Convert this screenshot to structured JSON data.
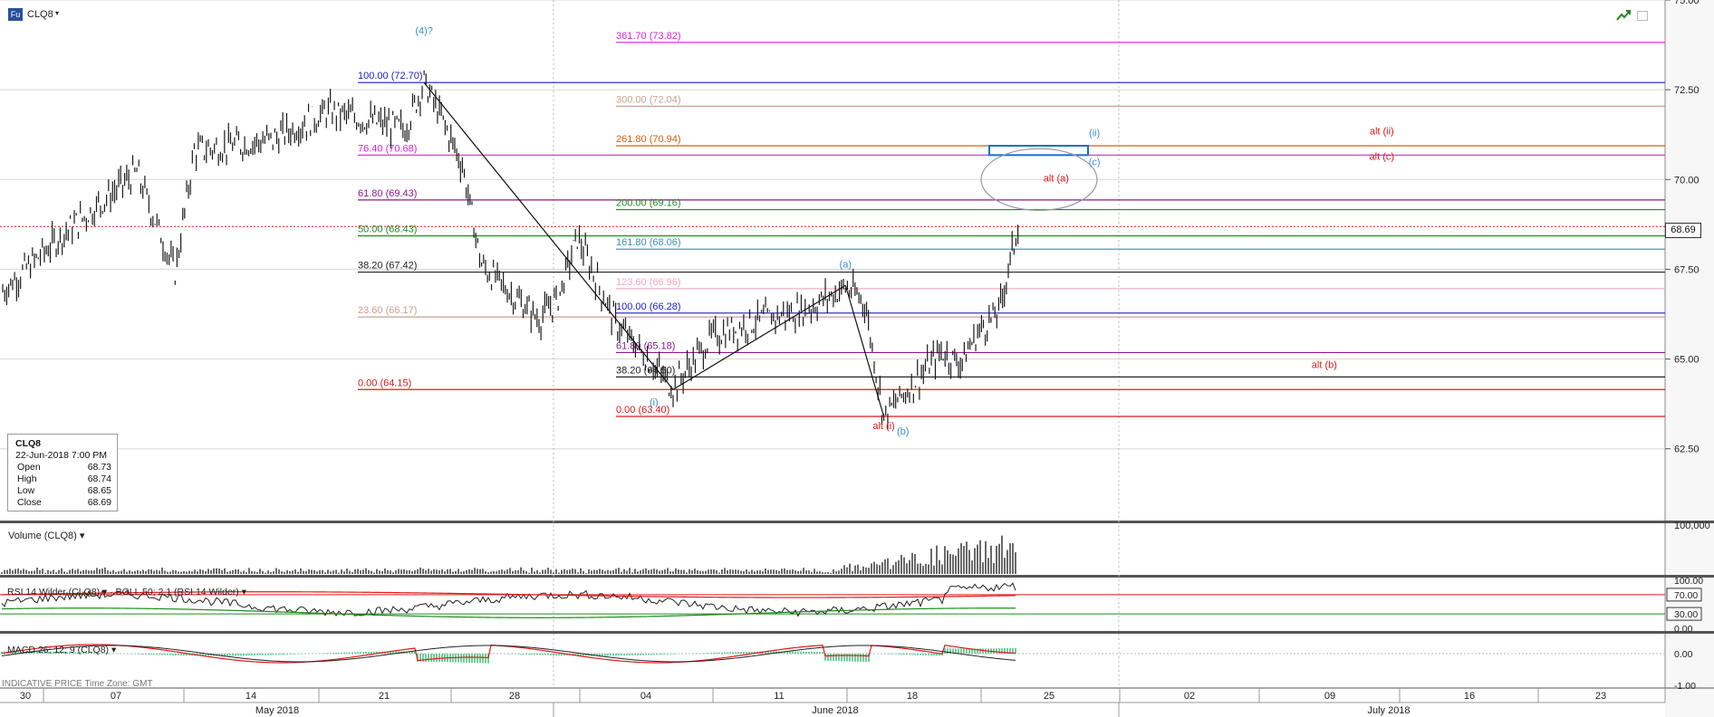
{
  "header": {
    "source_badge": "Fu",
    "symbol": "CLQ8",
    "caret": "▾"
  },
  "info_box": {
    "symbol": "CLQ8",
    "datetime": "22-Jun-2018 7:00 PM",
    "rows": [
      {
        "label": "Open",
        "value": "68.73"
      },
      {
        "label": "High",
        "value": "68.74"
      },
      {
        "label": "Low",
        "value": "68.65"
      },
      {
        "label": "Close",
        "value": "68.69"
      }
    ]
  },
  "icons": {
    "trend": "trend-line-icon",
    "window": "window-restore-icon"
  },
  "panels": {
    "volume_label": "Volume (CLQ8) ▾",
    "rsi_label": "RSI 14 Wilder (CLQ8) ▾ · BOLL 50; 2.1 (RSI 14 Wilder) ▾",
    "macd_label": "MACD 26; 12; 9 (CLQ8) ▾",
    "footnote": "INDICATIVE PRICE   Time Zone: GMT"
  },
  "colors": {
    "price": "#1a1a1a",
    "fib_blue": "#1c1cc8",
    "fib_magenta": "#e020d8",
    "fib_purple": "#8a1a8a",
    "fib_green": "#1f8a1f",
    "fib_teal": "#3a8faa",
    "fib_pink": "#f4a6c0",
    "fib_tan": "#c9a090",
    "fib_red": "#e01818",
    "fib_orange": "#d06010",
    "fib_black": "#222222",
    "wave_blue": "#3a8fd0",
    "wave_red": "#e01818"
  },
  "chart_data": {
    "type": "candlestick",
    "symbol": "CLQ8",
    "ylim": [
      60.5,
      75.0
    ],
    "y_ticks": [
      "75.00",
      "72.50",
      "70.00",
      "67.50",
      "65.00",
      "62.50"
    ],
    "last_price": "68.69",
    "x_axis": {
      "day_labels": [
        "30",
        "07",
        "14",
        "21",
        "28",
        "04",
        "11",
        "18",
        "25",
        "02",
        "09",
        "16",
        "23"
      ],
      "month_labels": [
        "May 2018",
        "June 2018",
        "July 2018"
      ]
    },
    "price_path": [
      {
        "date": "2018-04-30",
        "close": 66.9
      },
      {
        "date": "2018-05-03",
        "close": 68.4
      },
      {
        "date": "2018-05-07",
        "close": 70.2
      },
      {
        "date": "2018-05-09",
        "close": 67.4
      },
      {
        "date": "2018-05-10",
        "close": 70.8
      },
      {
        "date": "2018-05-14",
        "close": 71.1
      },
      {
        "date": "2018-05-17",
        "close": 71.9
      },
      {
        "date": "2018-05-21",
        "close": 71.4
      },
      {
        "date": "2018-05-22",
        "close": 72.7
      },
      {
        "date": "2018-05-23",
        "close": 71.6
      },
      {
        "date": "2018-05-24",
        "close": 70.4
      },
      {
        "date": "2018-05-25",
        "close": 67.6
      },
      {
        "date": "2018-05-28",
        "close": 66.1
      },
      {
        "date": "2018-05-29",
        "close": 66.7
      },
      {
        "date": "2018-05-30",
        "close": 68.4
      },
      {
        "date": "2018-06-01",
        "close": 66.0
      },
      {
        "date": "2018-06-04",
        "close": 64.2
      },
      {
        "date": "2018-06-06",
        "close": 65.6
      },
      {
        "date": "2018-06-08",
        "close": 66.0
      },
      {
        "date": "2018-06-11",
        "close": 66.4
      },
      {
        "date": "2018-06-13",
        "close": 67.0
      },
      {
        "date": "2018-06-14",
        "close": 66.6
      },
      {
        "date": "2018-06-15",
        "close": 63.4
      },
      {
        "date": "2018-06-18",
        "close": 65.2
      },
      {
        "date": "2018-06-19",
        "close": 64.9
      },
      {
        "date": "2018-06-20",
        "close": 65.8
      },
      {
        "date": "2018-06-21",
        "close": 66.3
      },
      {
        "date": "2018-06-22",
        "close": 68.69
      }
    ],
    "fib_levels": [
      {
        "label": "361.70 (73.82)",
        "price": 73.82,
        "color": "#e020d8",
        "anchor": "right"
      },
      {
        "label": "100.00 (72.70)",
        "price": 72.7,
        "color": "#1c1cc8",
        "anchor": "left"
      },
      {
        "label": "300.00 (72.04)",
        "price": 72.04,
        "color": "#c9a090",
        "anchor": "right"
      },
      {
        "label": "261.80 (70.94)",
        "price": 70.94,
        "color": "#d06010",
        "anchor": "right"
      },
      {
        "label": "76.40 (70.68)",
        "price": 70.68,
        "color": "#e020d8",
        "anchor": "left"
      },
      {
        "label": "61.80 (69.43)",
        "price": 69.43,
        "color": "#8a1a8a",
        "anchor": "left"
      },
      {
        "label": "200.00 (69.16)",
        "price": 69.16,
        "color": "#1f8a1f",
        "anchor": "right"
      },
      {
        "label": "50.00 (68.43)",
        "price": 68.43,
        "color": "#1f8a1f",
        "anchor": "left"
      },
      {
        "label": "161.80 (68.06)",
        "price": 68.06,
        "color": "#3a8faa",
        "anchor": "right"
      },
      {
        "label": "38.20 (67.42)",
        "price": 67.42,
        "color": "#222222",
        "anchor": "left"
      },
      {
        "label": "123.60 (66.96)",
        "price": 66.96,
        "color": "#f4a6c0",
        "anchor": "right"
      },
      {
        "label": "100.00 (66.28)",
        "price": 66.28,
        "color": "#1c1cc8",
        "anchor": "right"
      },
      {
        "label": "23.60 (66.17)",
        "price": 66.17,
        "color": "#c9a090",
        "anchor": "left"
      },
      {
        "label": "61.80 (65.18)",
        "price": 65.18,
        "color": "#8a1a8a",
        "anchor": "right"
      },
      {
        "label": "38.20 (64.50)",
        "price": 64.5,
        "color": "#222222",
        "anchor": "right"
      },
      {
        "label": "0.00 (64.15)",
        "price": 64.15,
        "color": "#e01818",
        "anchor": "left"
      },
      {
        "label": "0.00 (63.40)",
        "price": 63.4,
        "color": "#e01818",
        "anchor": "right"
      }
    ],
    "wave_labels": [
      {
        "text": "(4)?",
        "color": "#3a8fd0"
      },
      {
        "text": "(a)",
        "color": "#3a8fd0"
      },
      {
        "text": "(i)",
        "color": "#3a8fd0"
      },
      {
        "text": "(b)",
        "color": "#3a8fd0"
      },
      {
        "text": "(ii)",
        "color": "#3a8fd0"
      },
      {
        "text": "(c)",
        "color": "#3a8fd0"
      },
      {
        "text": "alt (a)",
        "color": "#e01818"
      },
      {
        "text": "alt (i)",
        "color": "#e01818"
      },
      {
        "text": "alt (b)",
        "color": "#e01818"
      },
      {
        "text": "alt (ii)",
        "color": "#e01818"
      },
      {
        "text": "alt (c)",
        "color": "#e01818"
      }
    ],
    "target_box_price": [
      70.68,
      70.94
    ],
    "volume": {
      "ylim": [
        0,
        100000
      ],
      "tick_label": "100,000",
      "note": "spikes into late June"
    },
    "rsi": {
      "ylim": [
        0,
        100
      ],
      "tick_labels": [
        "100.00",
        "70.00",
        "30.00",
        "0.00"
      ],
      "levels": [
        70,
        30
      ]
    },
    "macd": {
      "tick_labels": [
        "0.00",
        "-1.00"
      ]
    }
  }
}
